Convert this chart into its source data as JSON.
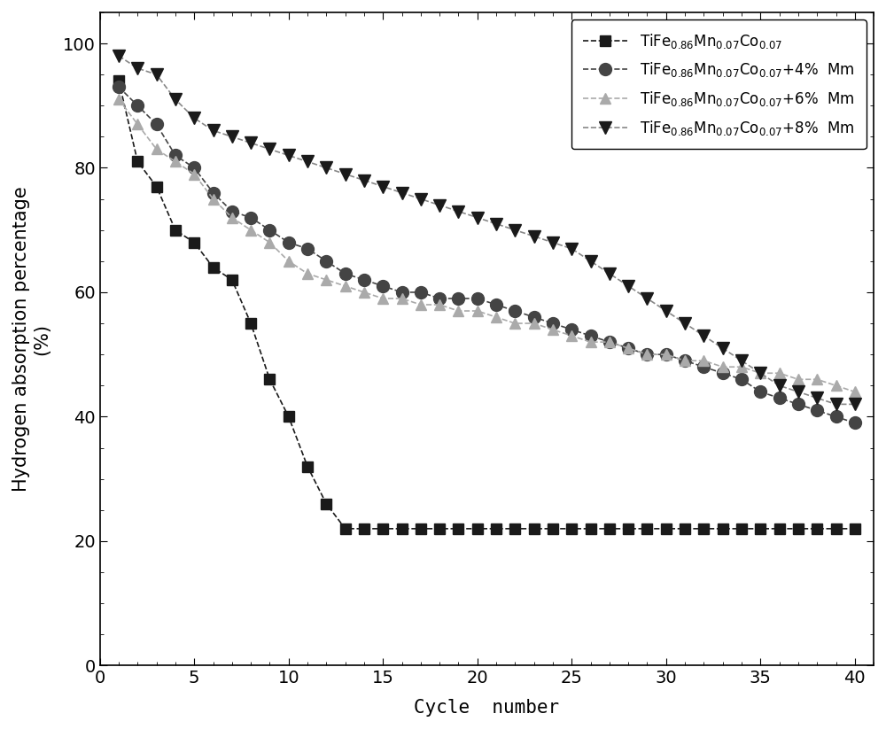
{
  "series": [
    {
      "label": "TiFe$_{0.86}$Mn$_{0.07}$Co$_{0.07}$",
      "color": "#1a1a1a",
      "line_color": "#1a1a1a",
      "marker": "s",
      "markersize": 9,
      "x": [
        1,
        2,
        3,
        4,
        5,
        6,
        7,
        8,
        9,
        10,
        11,
        12,
        13,
        14,
        15,
        16,
        17,
        18,
        19,
        20,
        21,
        22,
        23,
        24,
        25,
        26,
        27,
        28,
        29,
        30,
        31,
        32,
        33,
        34,
        35,
        36,
        37,
        38,
        39,
        40
      ],
      "y": [
        94,
        81,
        77,
        70,
        68,
        64,
        62,
        55,
        46,
        40,
        32,
        26,
        22,
        22,
        22,
        22,
        22,
        22,
        22,
        22,
        22,
        22,
        22,
        22,
        22,
        22,
        22,
        22,
        22,
        22,
        22,
        22,
        22,
        22,
        22,
        22,
        22,
        22,
        22,
        22
      ]
    },
    {
      "label": "TiFe$_{0.86}$Mn$_{0.07}$Co$_{0.07}$+4%  Mm",
      "color": "#444444",
      "line_color": "#444444",
      "marker": "o",
      "markersize": 10,
      "x": [
        1,
        2,
        3,
        4,
        5,
        6,
        7,
        8,
        9,
        10,
        11,
        12,
        13,
        14,
        15,
        16,
        17,
        18,
        19,
        20,
        21,
        22,
        23,
        24,
        25,
        26,
        27,
        28,
        29,
        30,
        31,
        32,
        33,
        34,
        35,
        36,
        37,
        38,
        39,
        40
      ],
      "y": [
        93,
        90,
        87,
        82,
        80,
        76,
        73,
        72,
        70,
        68,
        67,
        65,
        63,
        62,
        61,
        60,
        60,
        59,
        59,
        59,
        58,
        57,
        56,
        55,
        54,
        53,
        52,
        51,
        50,
        50,
        49,
        48,
        47,
        46,
        44,
        43,
        42,
        41,
        40,
        39
      ]
    },
    {
      "label": "TiFe$_{0.86}$Mn$_{0.07}$Co$_{0.07}$+6%  Mm",
      "color": "#aaaaaa",
      "line_color": "#aaaaaa",
      "marker": "^",
      "markersize": 9,
      "x": [
        1,
        2,
        3,
        4,
        5,
        6,
        7,
        8,
        9,
        10,
        11,
        12,
        13,
        14,
        15,
        16,
        17,
        18,
        19,
        20,
        21,
        22,
        23,
        24,
        25,
        26,
        27,
        28,
        29,
        30,
        31,
        32,
        33,
        34,
        35,
        36,
        37,
        38,
        39,
        40
      ],
      "y": [
        91,
        87,
        83,
        81,
        79,
        75,
        72,
        70,
        68,
        65,
        63,
        62,
        61,
        60,
        59,
        59,
        58,
        58,
        57,
        57,
        56,
        55,
        55,
        54,
        53,
        52,
        52,
        51,
        50,
        50,
        49,
        49,
        48,
        48,
        47,
        47,
        46,
        46,
        45,
        44
      ]
    },
    {
      "label": "TiFe$_{0.86}$Mn$_{0.07}$Co$_{0.07}$+8%  Mm",
      "color": "#1a1a1a",
      "line_color": "#888888",
      "marker": "v",
      "markersize": 10,
      "x": [
        1,
        2,
        3,
        4,
        5,
        6,
        7,
        8,
        9,
        10,
        11,
        12,
        13,
        14,
        15,
        16,
        17,
        18,
        19,
        20,
        21,
        22,
        23,
        24,
        25,
        26,
        27,
        28,
        29,
        30,
        31,
        32,
        33,
        34,
        35,
        36,
        37,
        38,
        39,
        40
      ],
      "y": [
        98,
        96,
        95,
        91,
        88,
        86,
        85,
        84,
        83,
        82,
        81,
        80,
        79,
        78,
        77,
        76,
        75,
        74,
        73,
        72,
        71,
        70,
        69,
        68,
        67,
        65,
        63,
        61,
        59,
        57,
        55,
        53,
        51,
        49,
        47,
        45,
        44,
        43,
        42,
        42
      ]
    }
  ],
  "xlabel": "Cycle  number",
  "ylabel": "Hydrogen absorption percentage",
  "ylabel2": "(%)",
  "xlim": [
    0,
    41
  ],
  "ylim": [
    0,
    105
  ],
  "xticks": [
    0,
    5,
    10,
    15,
    20,
    25,
    30,
    35,
    40
  ],
  "yticks": [
    0,
    20,
    40,
    60,
    80,
    100
  ],
  "figsize": [
    10.0,
    8.23
  ],
  "dpi": 100,
  "background_color": "#ffffff",
  "legend_loc": "upper right",
  "axis_label_fontsize": 15,
  "tick_fontsize": 14,
  "legend_fontsize": 12
}
